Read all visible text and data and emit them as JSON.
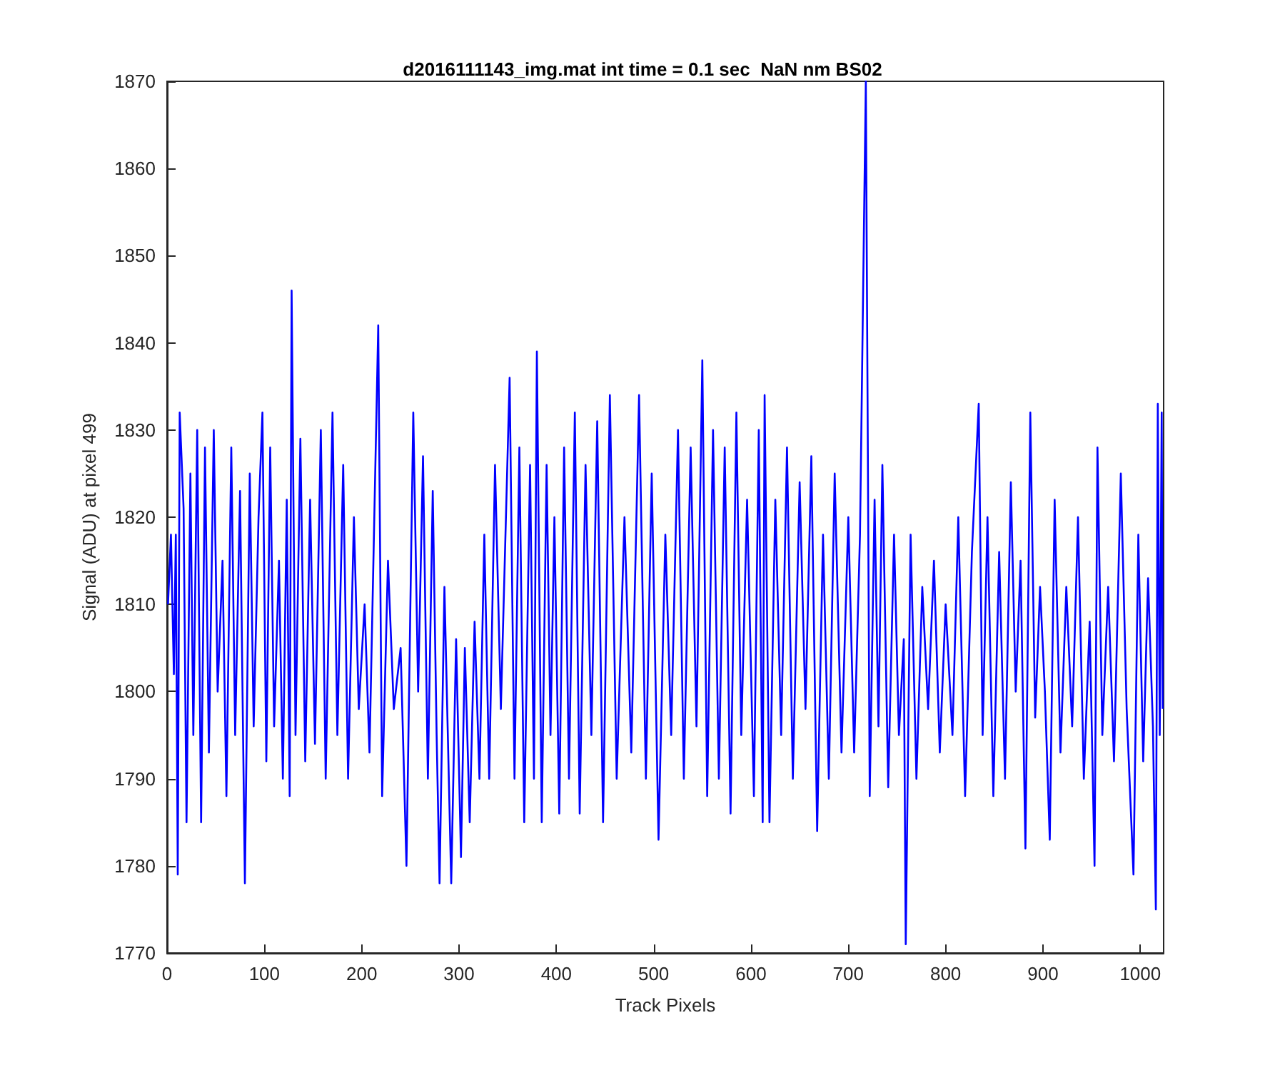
{
  "chart_data": {
    "type": "line",
    "title": "d2016111143_img.mat int time = 0.1 sec  NaN nm BS02",
    "xlabel": "Track Pixels",
    "ylabel": "Signal (ADU) at pixel 499",
    "xlim": [
      0,
      1024
    ],
    "xticks": [
      0,
      100,
      200,
      300,
      400,
      500,
      600,
      700,
      800,
      900,
      1000
    ],
    "ylim": [
      1770,
      1870
    ],
    "yticks": [
      1770,
      1780,
      1790,
      1800,
      1810,
      1820,
      1830,
      1840,
      1850,
      1860,
      1870
    ],
    "grid": false,
    "marker": "none",
    "line_style": "solid",
    "series": [
      {
        "color": "#0000ff",
        "x": [
          1,
          4,
          7,
          9,
          11,
          13,
          17,
          20,
          24,
          27,
          31,
          35,
          39,
          43,
          48,
          52,
          57,
          61,
          66,
          70,
          75,
          80,
          85,
          89,
          94,
          98,
          102,
          106,
          110,
          115,
          119,
          123,
          126,
          128,
          132,
          137,
          142,
          147,
          152,
          158,
          163,
          170,
          175,
          181,
          186,
          192,
          197,
          203,
          208,
          217,
          221,
          227,
          233,
          240,
          246,
          253,
          258,
          263,
          268,
          273,
          277,
          280,
          285,
          292,
          297,
          302,
          306,
          311,
          316,
          321,
          326,
          331,
          337,
          343,
          352,
          357,
          362,
          367,
          373,
          377,
          380,
          385,
          390,
          394,
          398,
          403,
          408,
          413,
          419,
          424,
          430,
          436,
          442,
          448,
          455,
          462,
          470,
          477,
          485,
          492,
          498,
          505,
          512,
          518,
          525,
          531,
          538,
          544,
          550,
          555,
          561,
          567,
          573,
          579,
          585,
          590,
          596,
          603,
          608,
          612,
          614,
          619,
          625,
          631,
          637,
          643,
          650,
          656,
          662,
          668,
          674,
          680,
          686,
          693,
          700,
          706,
          712,
          718,
          722,
          727,
          731,
          735,
          741,
          747,
          752,
          757,
          759,
          764,
          770,
          776,
          782,
          788,
          794,
          800,
          807,
          813,
          820,
          827,
          834,
          838,
          843,
          849,
          855,
          861,
          867,
          872,
          877,
          882,
          887,
          892,
          897,
          902,
          907,
          912,
          918,
          924,
          930,
          936,
          942,
          948,
          953,
          956,
          961,
          967,
          973,
          980,
          986,
          993,
          998,
          1003,
          1008,
          1013,
          1016,
          1018,
          1020,
          1022,
          1023
        ],
        "values": [
          1810,
          1818,
          1802,
          1818,
          1779,
          1832,
          1821,
          1785,
          1825,
          1795,
          1830,
          1785,
          1828,
          1793,
          1830,
          1800,
          1815,
          1788,
          1828,
          1795,
          1823,
          1778,
          1825,
          1796,
          1820,
          1832,
          1792,
          1828,
          1796,
          1815,
          1790,
          1822,
          1788,
          1846,
          1795,
          1829,
          1792,
          1822,
          1794,
          1830,
          1790,
          1832,
          1795,
          1826,
          1790,
          1820,
          1798,
          1810,
          1793,
          1842,
          1788,
          1815,
          1798,
          1805,
          1780,
          1832,
          1800,
          1827,
          1790,
          1823,
          1795,
          1778,
          1812,
          1778,
          1806,
          1781,
          1805,
          1785,
          1808,
          1790,
          1818,
          1790,
          1826,
          1798,
          1836,
          1790,
          1828,
          1785,
          1826,
          1790,
          1839,
          1785,
          1826,
          1795,
          1820,
          1786,
          1828,
          1790,
          1832,
          1786,
          1826,
          1795,
          1831,
          1785,
          1834,
          1790,
          1820,
          1793,
          1834,
          1790,
          1825,
          1783,
          1818,
          1795,
          1830,
          1790,
          1828,
          1796,
          1838,
          1788,
          1830,
          1790,
          1828,
          1786,
          1832,
          1795,
          1822,
          1788,
          1830,
          1785,
          1834,
          1785,
          1822,
          1795,
          1828,
          1790,
          1824,
          1798,
          1827,
          1784,
          1818,
          1790,
          1825,
          1793,
          1820,
          1793,
          1818,
          1870,
          1788,
          1822,
          1796,
          1826,
          1789,
          1818,
          1795,
          1806,
          1771,
          1818,
          1790,
          1812,
          1798,
          1815,
          1793,
          1810,
          1795,
          1820,
          1788,
          1816,
          1833,
          1795,
          1820,
          1788,
          1816,
          1790,
          1824,
          1800,
          1815,
          1782,
          1832,
          1797,
          1812,
          1800,
          1783,
          1822,
          1793,
          1812,
          1796,
          1820,
          1790,
          1808,
          1780,
          1828,
          1795,
          1812,
          1792,
          1825,
          1798,
          1779,
          1818,
          1792,
          1813,
          1796,
          1775,
          1833,
          1795,
          1832,
          1798
        ]
      }
    ]
  }
}
